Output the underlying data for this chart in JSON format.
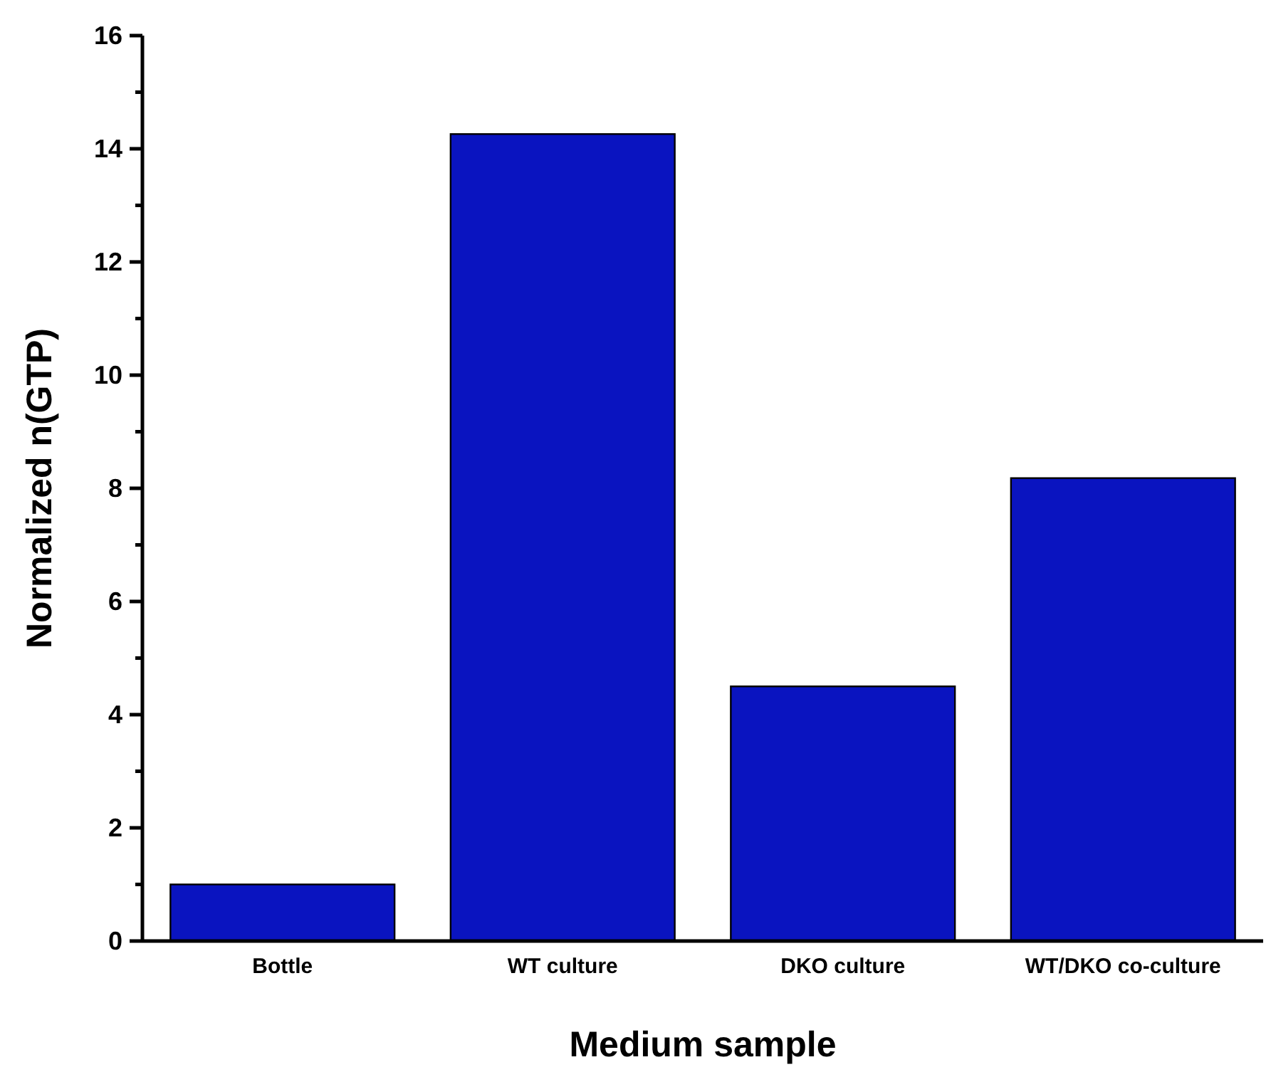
{
  "chart_data": {
    "type": "bar",
    "xlabel": "Medium sample",
    "ylabel": "Normalized n(GTP)",
    "categories": [
      "Bottle",
      "WT culture",
      "DKO culture",
      "WT/DKO co-culture"
    ],
    "values": [
      1.0,
      14.26,
      4.5,
      8.18
    ],
    "color": "#0a14c0",
    "ylim": [
      0,
      16
    ],
    "yticks": [
      0,
      {
        "value": 1,
        "label": null
      },
      2,
      {
        "value": 3,
        "label": null
      },
      4,
      {
        "value": 5,
        "label": null
      },
      6,
      {
        "value": 7,
        "label": null
      },
      8,
      {
        "value": 9,
        "label": null
      },
      10,
      {
        "value": 11,
        "label": null
      },
      12,
      {
        "value": 13,
        "label": null
      },
      14,
      {
        "value": 15,
        "label": null
      },
      16
    ],
    "grid": false
  }
}
